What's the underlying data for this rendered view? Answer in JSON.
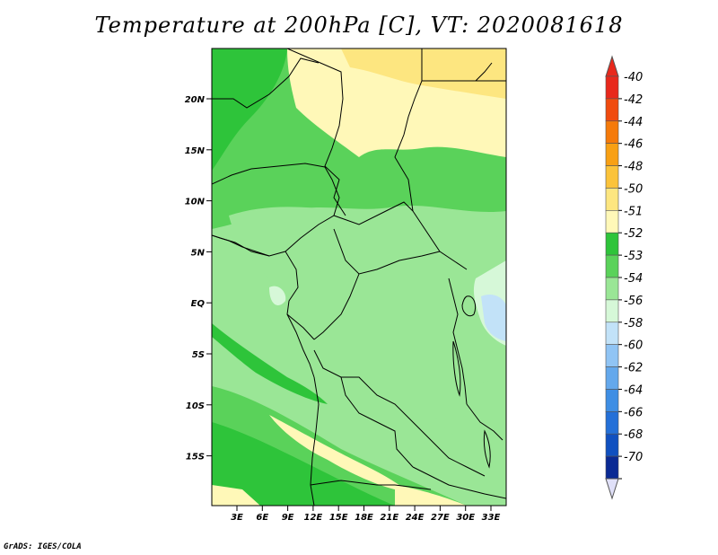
{
  "title": "Temperature at 200hPa [C], VT: 2020081618",
  "credit": "GrADS: IGES/COLA",
  "map": {
    "lat_labels": [
      "20N",
      "15N",
      "10N",
      "5N",
      "EQ",
      "5S",
      "10S",
      "15S"
    ],
    "lon_labels": [
      "3E",
      "6E",
      "9E",
      "12E",
      "15E",
      "18E",
      "21E",
      "24E",
      "27E",
      "30E",
      "33E"
    ]
  },
  "colorbar": {
    "levels": [
      {
        "label": "-40",
        "color": "#e8281c"
      },
      {
        "label": "-42",
        "color": "#f04b0e"
      },
      {
        "label": "-44",
        "color": "#f57a0a"
      },
      {
        "label": "-46",
        "color": "#f8a014"
      },
      {
        "label": "-48",
        "color": "#fbc33a"
      },
      {
        "label": "-50",
        "color": "#fde680"
      },
      {
        "label": "-51",
        "color": "#fff8b8"
      },
      {
        "label": "-52",
        "color": "#2ec43a"
      },
      {
        "label": "-53",
        "color": "#5ad25a"
      },
      {
        "label": "-54",
        "color": "#9ae696"
      },
      {
        "label": "-56",
        "color": "#d6f8d8"
      },
      {
        "label": "-58",
        "color": "#c2e2f8"
      },
      {
        "label": "-60",
        "color": "#90c4f4"
      },
      {
        "label": "-62",
        "color": "#64a8ec"
      },
      {
        "label": "-64",
        "color": "#3e8ee4"
      },
      {
        "label": "-66",
        "color": "#2470d8"
      },
      {
        "label": "-68",
        "color": "#1050c0"
      },
      {
        "label": "-70",
        "color": "#0a2a94"
      }
    ],
    "top_color": "#e8281c",
    "bottom_color": "#e0e0f8"
  },
  "fields": {
    "c51": "#fff8b8",
    "c50": "#fde680",
    "c52": "#2ec43a",
    "c53": "#5ad25a",
    "c54": "#9ae696",
    "c56": "#d6f8d8",
    "c58": "#c2e2f8"
  }
}
